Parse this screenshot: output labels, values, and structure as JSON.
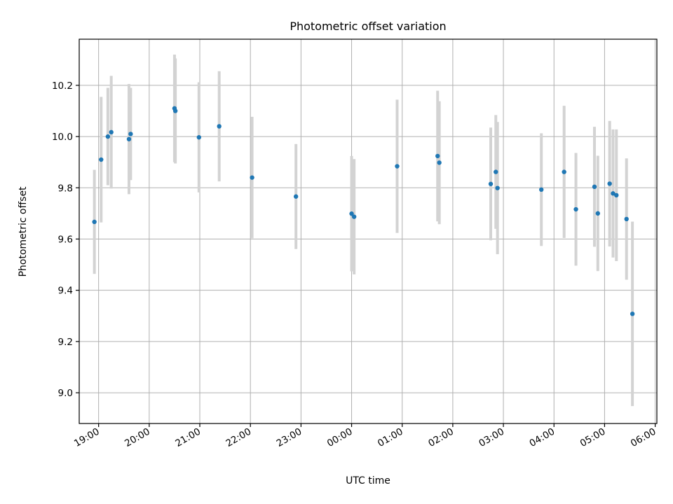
{
  "chart_data": {
    "type": "scatter",
    "title": "Photometric offset variation",
    "xlabel": "UTC time",
    "ylabel": "Photometric offset",
    "x_ticks": [
      "19:00",
      "20:00",
      "21:00",
      "22:00",
      "23:00",
      "00:00",
      "01:00",
      "02:00",
      "03:00",
      "04:00",
      "05:00",
      "06:00"
    ],
    "y_ticks": [
      "9.0",
      "9.2",
      "9.4",
      "9.6",
      "9.8",
      "10.0",
      "10.2"
    ],
    "xlim": [
      "18:37",
      "06:02"
    ],
    "ylim": [
      8.88,
      10.38
    ],
    "grid": true,
    "point_color": "#1f77b4",
    "errorbar_color": "#d3d3d3",
    "points": [
      {
        "x": "18:55",
        "y": 9.667,
        "err": 0.203
      },
      {
        "x": "19:03",
        "y": 9.91,
        "err": 0.245
      },
      {
        "x": "19:11",
        "y": 10.0,
        "err": 0.19
      },
      {
        "x": "19:15",
        "y": 10.017,
        "err": 0.22
      },
      {
        "x": "19:36",
        "y": 9.99,
        "err": 0.215
      },
      {
        "x": "19:38",
        "y": 10.01,
        "err": 0.18
      },
      {
        "x": "20:30",
        "y": 10.11,
        "err": 0.21
      },
      {
        "x": "20:31",
        "y": 10.1,
        "err": 0.205
      },
      {
        "x": "20:59",
        "y": 9.997,
        "err": 0.215
      },
      {
        "x": "21:23",
        "y": 10.04,
        "err": 0.215
      },
      {
        "x": "22:02",
        "y": 9.84,
        "err": 0.237
      },
      {
        "x": "22:54",
        "y": 9.766,
        "err": 0.205
      },
      {
        "x": "00:00",
        "y": 9.699,
        "err": 0.225
      },
      {
        "x": "00:03",
        "y": 9.687,
        "err": 0.225
      },
      {
        "x": "00:54",
        "y": 9.884,
        "err": 0.26
      },
      {
        "x": "01:42",
        "y": 9.924,
        "err": 0.255
      },
      {
        "x": "01:44",
        "y": 9.898,
        "err": 0.24
      },
      {
        "x": "02:45",
        "y": 9.815,
        "err": 0.22
      },
      {
        "x": "02:51",
        "y": 9.862,
        "err": 0.222
      },
      {
        "x": "02:53",
        "y": 9.799,
        "err": 0.258
      },
      {
        "x": "03:45",
        "y": 9.793,
        "err": 0.22
      },
      {
        "x": "04:12",
        "y": 9.862,
        "err": 0.258
      },
      {
        "x": "04:26",
        "y": 9.716,
        "err": 0.22
      },
      {
        "x": "04:48",
        "y": 9.804,
        "err": 0.234
      },
      {
        "x": "04:52",
        "y": 9.7,
        "err": 0.225
      },
      {
        "x": "05:06",
        "y": 9.816,
        "err": 0.245
      },
      {
        "x": "05:10",
        "y": 9.778,
        "err": 0.25
      },
      {
        "x": "05:14",
        "y": 9.771,
        "err": 0.257
      },
      {
        "x": "05:26",
        "y": 9.678,
        "err": 0.237
      },
      {
        "x": "05:33",
        "y": 9.308,
        "err": 0.36
      }
    ]
  }
}
